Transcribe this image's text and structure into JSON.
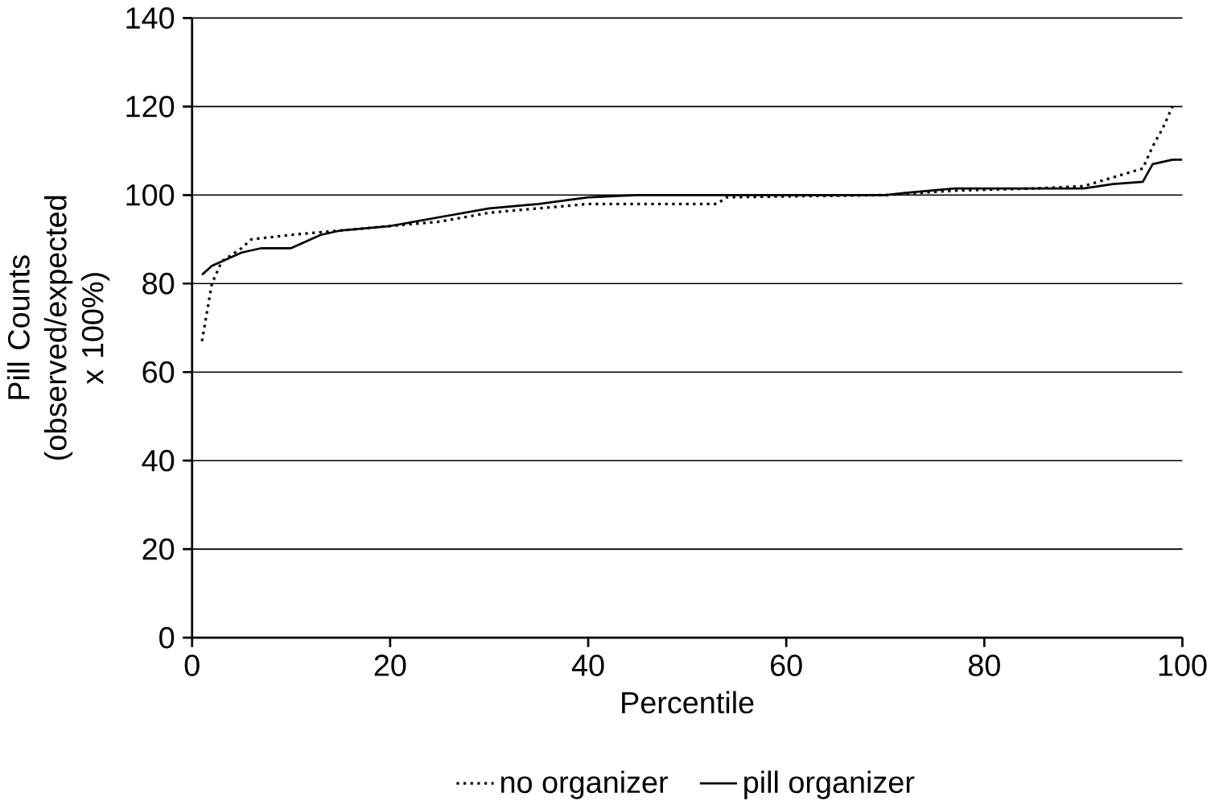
{
  "chart_data": {
    "type": "line",
    "xlabel": "Percentile",
    "ylabel": "Pill Counts\n(observed/expected x 100%)",
    "xlim": [
      0,
      100
    ],
    "ylim": [
      0,
      140
    ],
    "xticks": [
      0,
      20,
      40,
      60,
      80,
      100
    ],
    "yticks": [
      0,
      20,
      40,
      60,
      80,
      100,
      120,
      140
    ],
    "grid": "y",
    "legend": "bottom",
    "series": [
      {
        "name": "no organizer",
        "color": "#000000",
        "line_style": "dotted",
        "x": [
          1,
          2,
          3,
          5,
          6,
          10,
          15,
          20,
          25,
          30,
          35,
          40,
          45,
          53,
          54,
          70,
          77,
          85,
          90,
          93,
          96,
          97,
          98,
          99
        ],
        "values": [
          67,
          80,
          85,
          88,
          90,
          91,
          92,
          93,
          94,
          96,
          97,
          98,
          98,
          98,
          99.5,
          100,
          101,
          101.5,
          102,
          104,
          106,
          111,
          115,
          120
        ]
      },
      {
        "name": "pill organizer",
        "color": "#000000",
        "line_style": "solid",
        "x": [
          1,
          2,
          3,
          5,
          7,
          10,
          13,
          15,
          20,
          25,
          30,
          35,
          40,
          45,
          70,
          72,
          77,
          90,
          93,
          96,
          97,
          99,
          100
        ],
        "values": [
          82,
          84,
          85,
          87,
          88,
          88,
          91,
          92,
          93,
          95,
          97,
          98,
          99.5,
          100,
          100,
          100.5,
          101.5,
          101.5,
          102.5,
          103,
          107,
          108,
          108
        ]
      }
    ]
  }
}
